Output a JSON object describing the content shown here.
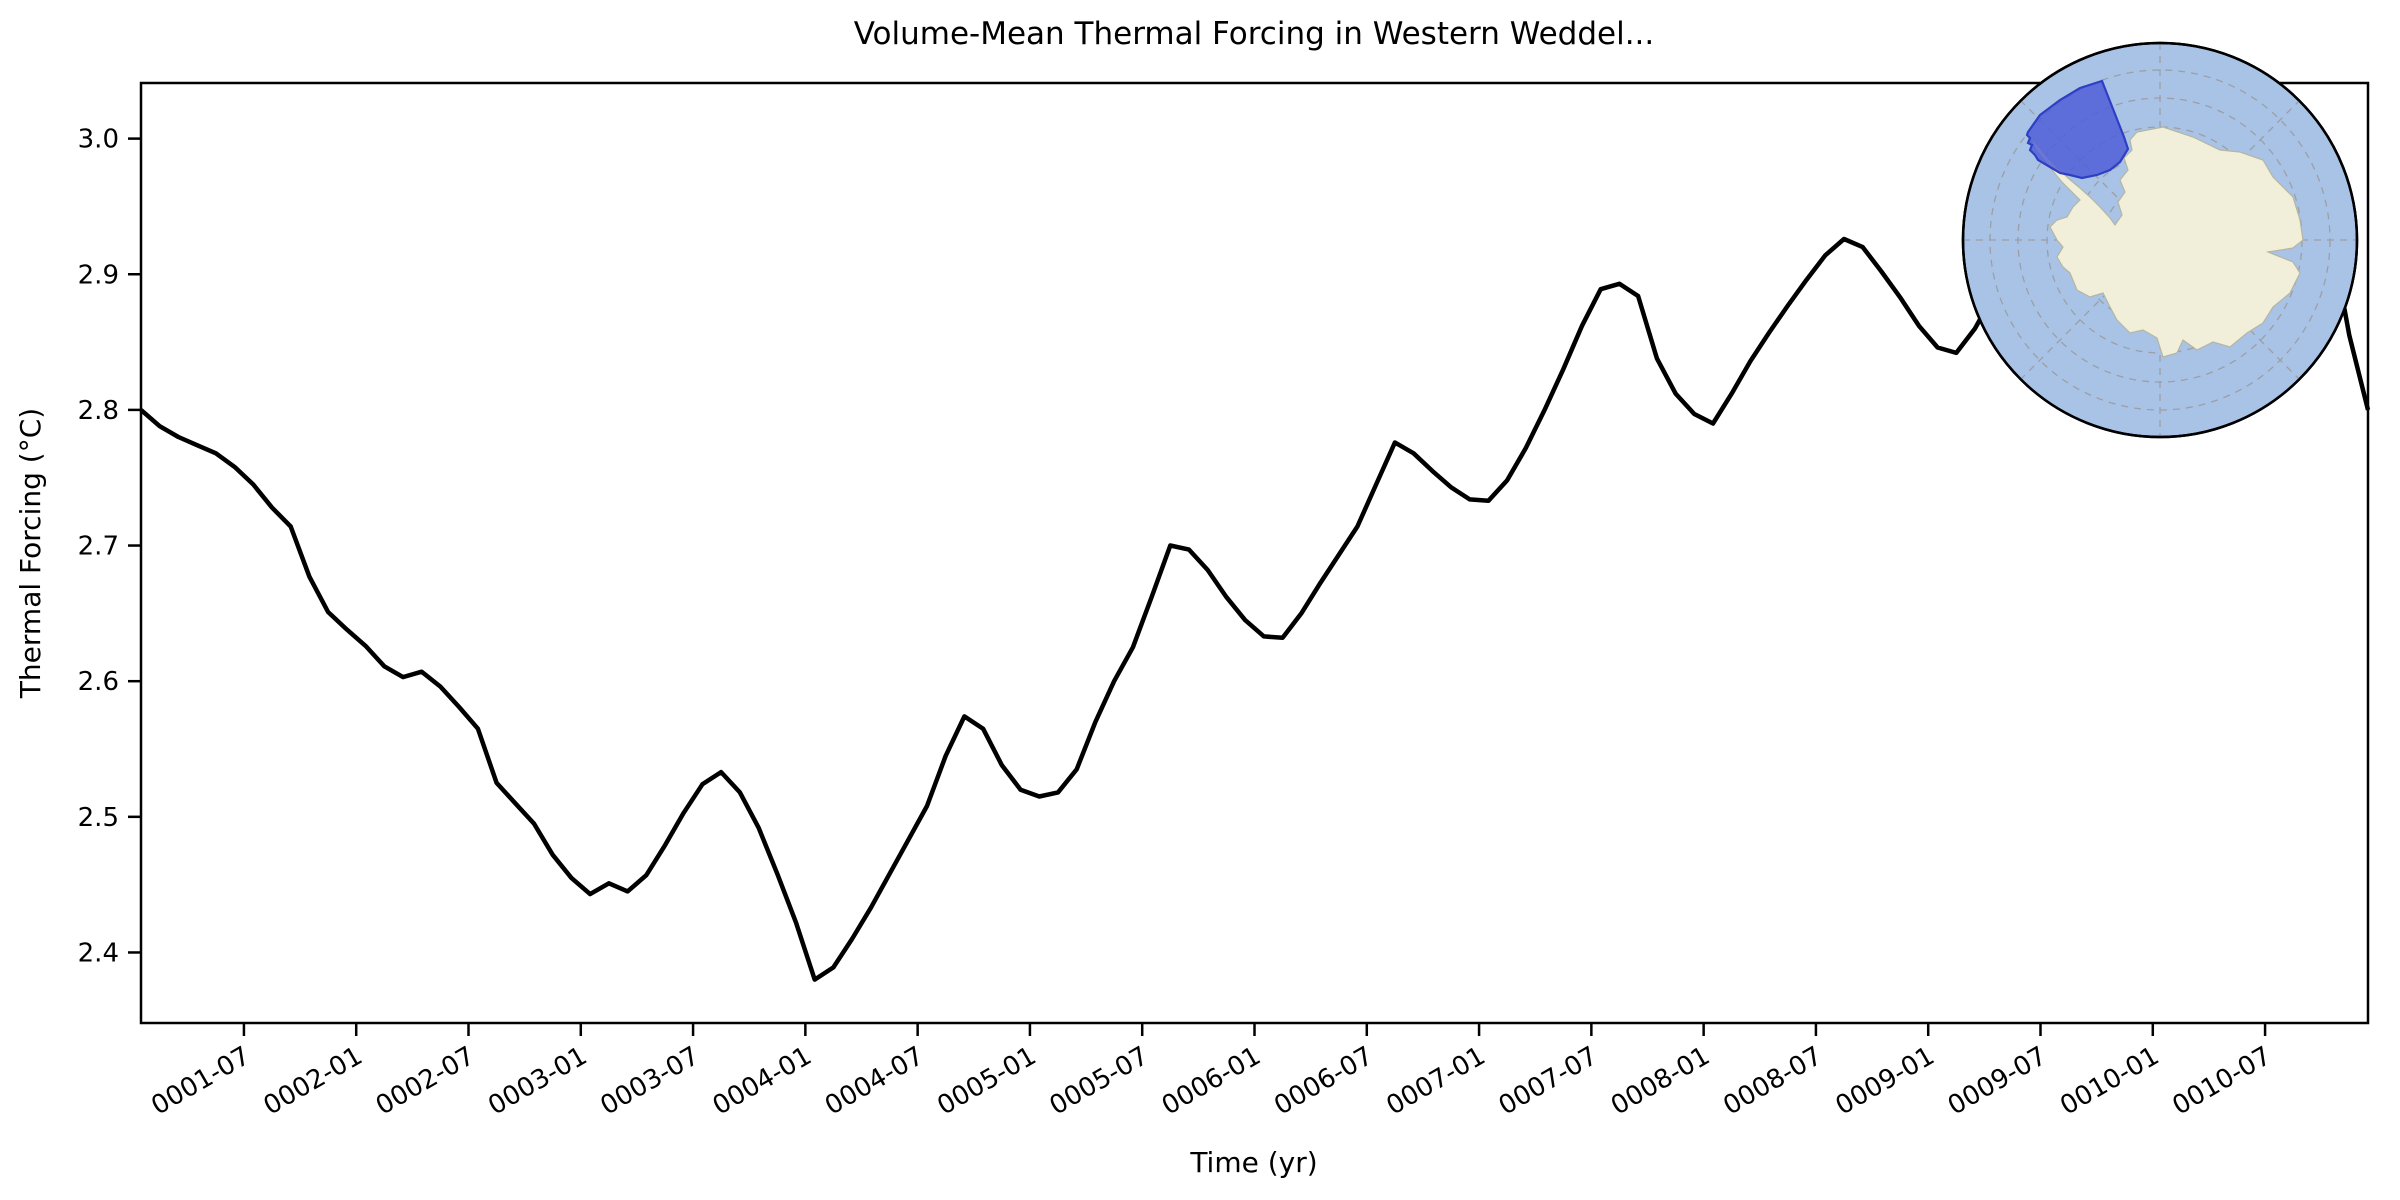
{
  "figure": {
    "background": "#ffffff"
  },
  "chart_data": {
    "type": "line",
    "title": "Volume-Mean Thermal Forcing in Western Weddel...",
    "xlabel": "Time (yr)",
    "ylabel": "Thermal Forcing (°C)",
    "x_start": "0001-01",
    "x_end": "0010-12",
    "x_step": "1 month",
    "ylim": [
      2.348,
      3.041
    ],
    "grid": false,
    "legend": "none",
    "y_ticks": [
      2.4,
      2.5,
      2.6,
      2.7,
      2.8,
      2.9,
      3.0
    ],
    "x_tick_labels": [
      "0001-07",
      "0002-01",
      "0002-07",
      "0003-01",
      "0003-07",
      "0004-01",
      "0004-07",
      "0005-01",
      "0005-07",
      "0006-01",
      "0006-07",
      "0007-01",
      "0007-07",
      "0008-01",
      "0008-07",
      "0009-01",
      "0009-07",
      "0010-01",
      "0010-07"
    ],
    "x_first_tick_month_index": 5.5,
    "x_tick_month_interval": 6,
    "series": [
      {
        "name": "volume-mean thermal forcing",
        "color": "#000000",
        "line_width": 4.5,
        "values": [
          2.8,
          2.788,
          2.78,
          2.774,
          2.768,
          2.758,
          2.745,
          2.728,
          2.714,
          2.677,
          2.651,
          2.638,
          2.626,
          2.611,
          2.603,
          2.607,
          2.596,
          2.581,
          2.565,
          2.525,
          2.51,
          2.495,
          2.472,
          2.455,
          2.443,
          2.451,
          2.445,
          2.457,
          2.479,
          2.503,
          2.524,
          2.533,
          2.518,
          2.492,
          2.458,
          2.422,
          2.38,
          2.389,
          2.41,
          2.433,
          2.458,
          2.483,
          2.508,
          2.545,
          2.574,
          2.565,
          2.538,
          2.52,
          2.515,
          2.518,
          2.535,
          2.57,
          2.6,
          2.625,
          2.662,
          2.7,
          2.697,
          2.682,
          2.662,
          2.645,
          2.633,
          2.632,
          2.65,
          2.672,
          2.693,
          2.714,
          2.745,
          2.776,
          2.768,
          2.755,
          2.743,
          2.734,
          2.733,
          2.748,
          2.772,
          2.8,
          2.83,
          2.862,
          2.889,
          2.893,
          2.884,
          2.838,
          2.812,
          2.797,
          2.79,
          2.812,
          2.836,
          2.857,
          2.877,
          2.896,
          2.914,
          2.926,
          2.92,
          2.902,
          2.883,
          2.862,
          2.846,
          2.842,
          2.86,
          2.885,
          2.91,
          2.935,
          2.952,
          2.956,
          2.948,
          2.93,
          2.91,
          2.89,
          2.876,
          2.87,
          2.878,
          2.9,
          2.925,
          2.95,
          2.975,
          2.995,
          3.005,
          2.93,
          2.855,
          2.8
        ]
      }
    ]
  },
  "axes_style": {
    "spine_color": "#000000",
    "tick_color": "#000000",
    "x_tick_label_rotation_deg": -30
  },
  "inset_map": {
    "ocean_color": "#a9c3e6",
    "land_color": "#f1efda",
    "land_edge_color": "#b5b5a2",
    "graticule_color": "#999999",
    "region_fill_color": "#4c5cd8",
    "region_edge_color": "#2e3fc4",
    "rim_color": "#000000"
  }
}
